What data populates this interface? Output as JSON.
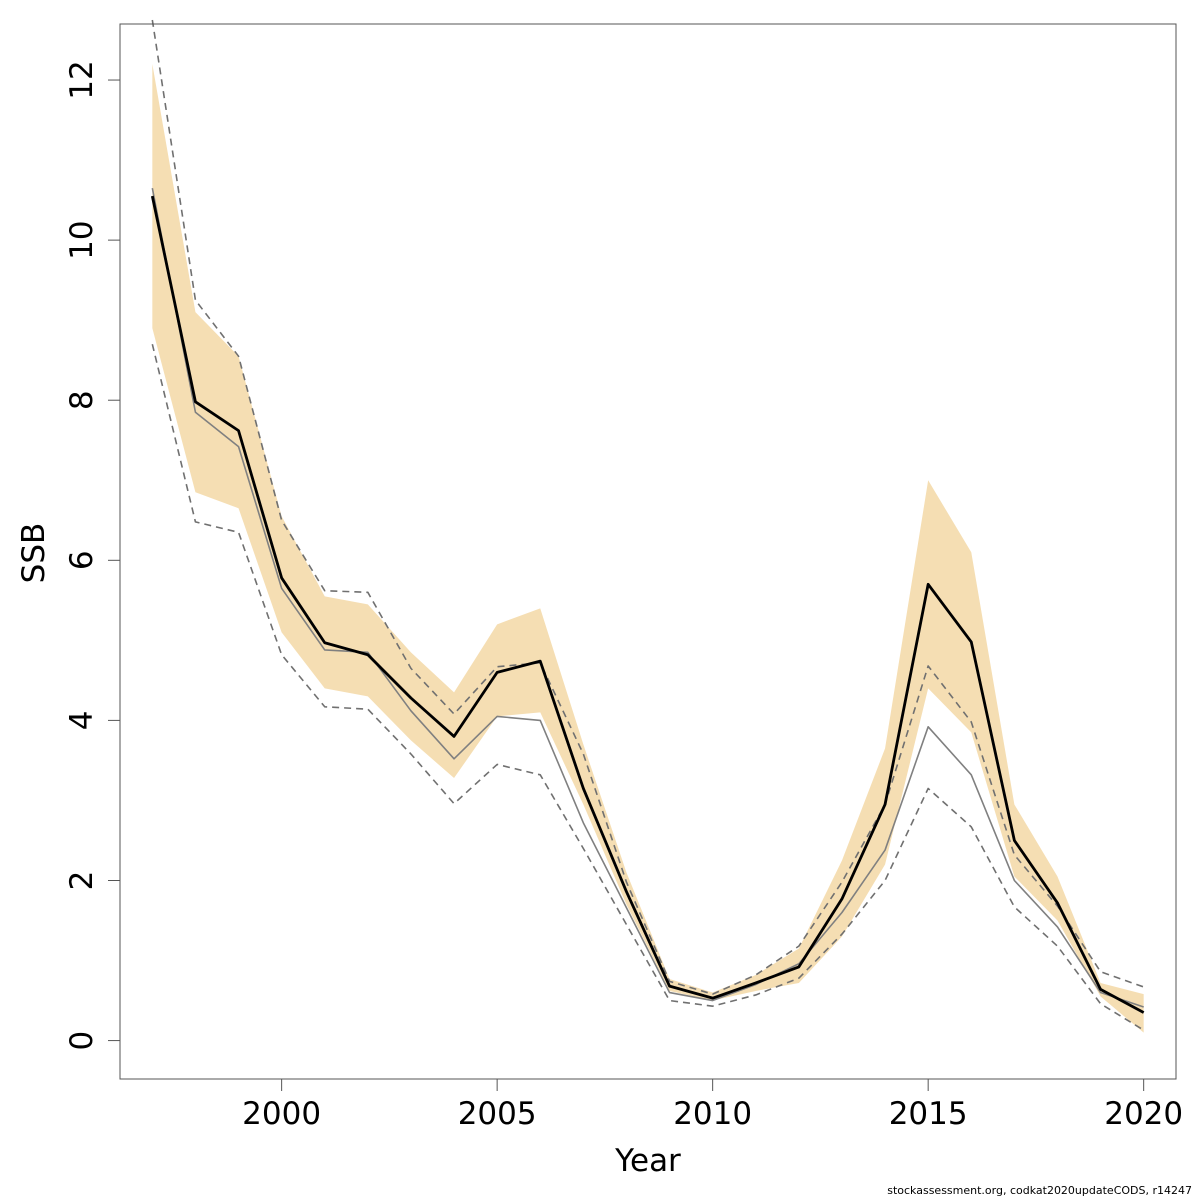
{
  "chart_data": {
    "type": "line",
    "xlabel": "Year",
    "ylabel": "SSB",
    "xlim": [
      1996.25,
      2020.75
    ],
    "ylim": [
      -0.48,
      12.7
    ],
    "x_ticks": [
      2000,
      2005,
      2010,
      2015,
      2020
    ],
    "y_ticks": [
      0,
      2,
      4,
      6,
      8,
      10,
      12
    ],
    "grid": false,
    "x": [
      1997,
      1998,
      1999,
      2000,
      2001,
      2002,
      2003,
      2004,
      2005,
      2006,
      2007,
      2008,
      2009,
      2010,
      2011,
      2012,
      2013,
      2014,
      2015,
      2016,
      2017,
      2018,
      2019,
      2020
    ],
    "band": {
      "lower": [
        8.9,
        6.85,
        6.65,
        5.1,
        4.4,
        4.3,
        3.75,
        3.28,
        4.05,
        4.1,
        2.95,
        1.7,
        0.62,
        0.5,
        0.62,
        0.72,
        1.3,
        2.2,
        4.4,
        3.85,
        2.05,
        1.5,
        0.55,
        0.1
      ],
      "upper": [
        12.2,
        9.1,
        8.55,
        6.55,
        5.55,
        5.45,
        4.85,
        4.35,
        5.2,
        5.4,
        3.7,
        2.1,
        0.77,
        0.6,
        0.82,
        1.15,
        2.25,
        3.65,
        7.0,
        6.1,
        2.95,
        2.05,
        0.72,
        0.58
      ],
      "color": "#f5deb3"
    },
    "series": [
      {
        "values": [
          10.55,
          7.98,
          7.62,
          5.78,
          4.97,
          4.82,
          4.28,
          3.8,
          4.6,
          4.74,
          3.15,
          1.86,
          0.68,
          0.53,
          0.72,
          0.92,
          1.77,
          2.95,
          5.7,
          4.98,
          2.5,
          1.72,
          0.64,
          0.35
        ],
        "color": "#000000",
        "style": "solid-thick"
      },
      {
        "values": [
          10.65,
          7.85,
          7.42,
          5.65,
          4.88,
          4.85,
          4.12,
          3.52,
          4.05,
          4.0,
          2.72,
          1.66,
          0.6,
          0.5,
          0.7,
          0.96,
          1.6,
          2.38,
          3.92,
          3.32,
          2.0,
          1.42,
          0.6,
          0.42
        ],
        "color": "#808080",
        "style": "solid-thin"
      },
      {
        "values": [
          12.75,
          9.25,
          8.55,
          6.5,
          5.62,
          5.6,
          4.65,
          4.08,
          4.67,
          4.72,
          3.58,
          1.98,
          0.74,
          0.58,
          0.82,
          1.18,
          1.98,
          2.95,
          4.68,
          3.98,
          2.32,
          1.68,
          0.86,
          0.67
        ],
        "color": "#707070",
        "style": "dashed"
      },
      {
        "values": [
          8.7,
          6.48,
          6.35,
          4.82,
          4.17,
          4.14,
          3.58,
          2.96,
          3.45,
          3.32,
          2.4,
          1.45,
          0.5,
          0.43,
          0.57,
          0.78,
          1.33,
          2.0,
          3.15,
          2.67,
          1.67,
          1.18,
          0.46,
          0.13
        ],
        "color": "#707070",
        "style": "dashed"
      }
    ]
  },
  "footnote": "stockassessment.org, codkat2020updateCODS, r14247"
}
